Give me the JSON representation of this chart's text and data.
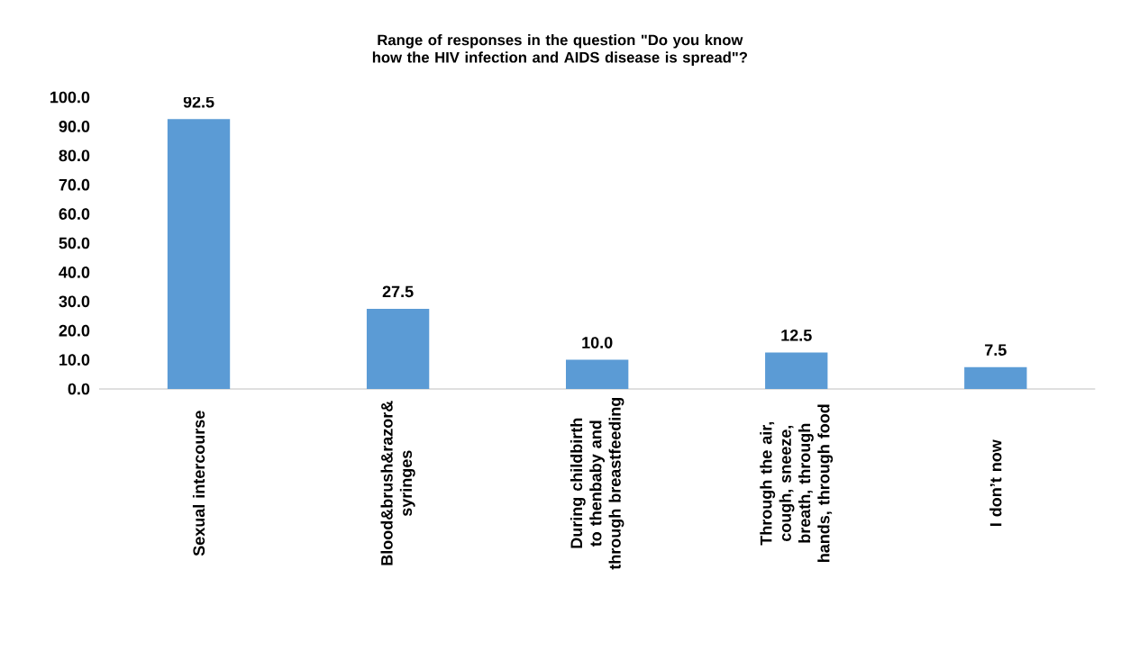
{
  "chart_data": {
    "type": "bar",
    "title": "Range of responses in the question \"Do you know how the HIV infection and AIDS disease is spread\"?",
    "categories": [
      "Sexual intercourse",
      "Blood&brush&razor& syringes",
      "During childbirth to thenbaby and through breastfeeding",
      "Through the air, cough, sneeze, breath, through hands, through food",
      "I don’t now"
    ],
    "values": [
      92.5,
      27.5,
      10.0,
      12.5,
      7.5
    ],
    "value_labels": [
      "92.5",
      "27.5",
      "10.0",
      "12.5",
      "7.5"
    ],
    "color": "#5b9bd5",
    "ylim": [
      0,
      100
    ],
    "yticks": [
      {
        "value": 0,
        "label": "0.0"
      },
      {
        "value": 10,
        "label": "10.0"
      },
      {
        "value": 20,
        "label": "20.0"
      },
      {
        "value": 30,
        "label": "30.0"
      },
      {
        "value": 40,
        "label": "40.0"
      },
      {
        "value": 50,
        "label": "50.0"
      },
      {
        "value": 60,
        "label": "60.0"
      },
      {
        "value": 70,
        "label": "70.0"
      },
      {
        "value": 80,
        "label": "80.0"
      },
      {
        "value": 90,
        "label": "90.0"
      },
      {
        "value": 100,
        "label": "100.0"
      }
    ],
    "grid": false
  }
}
